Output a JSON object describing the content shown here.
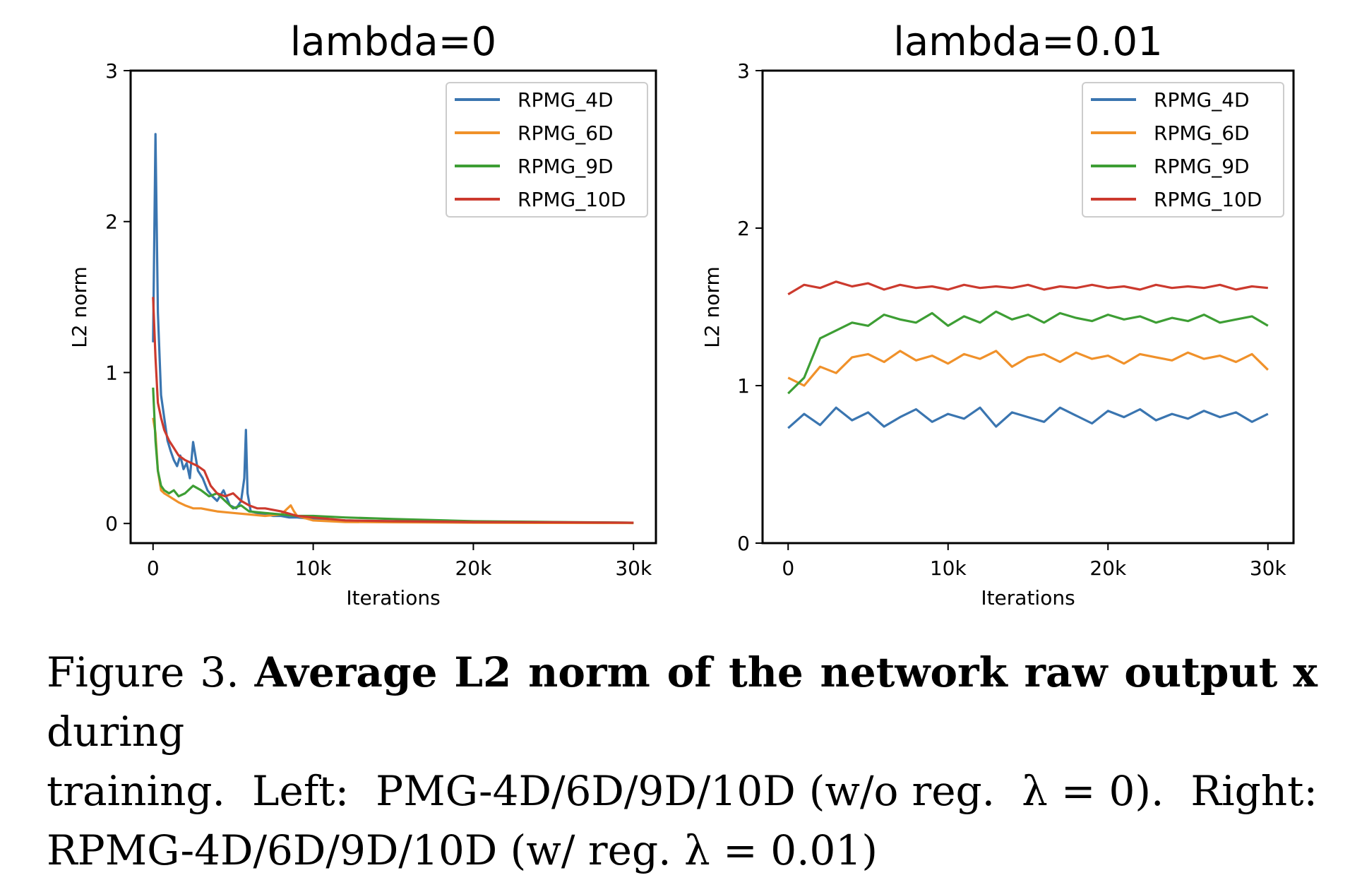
{
  "chart_data": [
    {
      "type": "line",
      "title": "lambda=0",
      "xlabel": "Iterations",
      "ylabel": "L2 norm",
      "xlim": [
        -1400,
        31400
      ],
      "ylim": [
        -0.13,
        3.0
      ],
      "xticks": [
        0,
        10000,
        20000,
        30000
      ],
      "xtick_labels": [
        "0",
        "10k",
        "20k",
        "30k"
      ],
      "yticks": [
        0,
        1,
        2,
        3
      ],
      "ytick_labels": [
        "0",
        "1",
        "2",
        "3"
      ],
      "legend_position": "top-right",
      "series": [
        {
          "name": "RPMG_4D",
          "color": "#3a75b0",
          "x": [
            0,
            150,
            300,
            500,
            700,
            900,
            1100,
            1300,
            1500,
            1700,
            1900,
            2100,
            2300,
            2500,
            2800,
            3100,
            3400,
            3700,
            4000,
            4400,
            4800,
            5200,
            5500,
            5700,
            5800,
            5900,
            6100,
            6500,
            7000,
            7500,
            8000,
            8500,
            9000,
            10000,
            12000,
            15000,
            20000,
            25000,
            30000
          ],
          "values": [
            1.2,
            2.58,
            1.4,
            0.85,
            0.7,
            0.55,
            0.48,
            0.42,
            0.38,
            0.45,
            0.36,
            0.4,
            0.3,
            0.54,
            0.35,
            0.3,
            0.22,
            0.18,
            0.15,
            0.22,
            0.12,
            0.1,
            0.15,
            0.3,
            0.62,
            0.2,
            0.08,
            0.07,
            0.06,
            0.05,
            0.05,
            0.04,
            0.04,
            0.03,
            0.02,
            0.015,
            0.01,
            0.008,
            0.005
          ]
        },
        {
          "name": "RPMG_6D",
          "color": "#f0912a",
          "x": [
            0,
            150,
            300,
            500,
            700,
            1000,
            1300,
            1600,
            2000,
            2500,
            3000,
            3500,
            4000,
            5000,
            6000,
            7000,
            8000,
            8600,
            8800,
            9000,
            10000,
            12000,
            15000,
            20000,
            25000,
            30000
          ],
          "values": [
            0.7,
            0.6,
            0.35,
            0.22,
            0.2,
            0.18,
            0.16,
            0.14,
            0.12,
            0.1,
            0.1,
            0.09,
            0.08,
            0.07,
            0.06,
            0.05,
            0.06,
            0.12,
            0.08,
            0.05,
            0.02,
            0.01,
            0.008,
            0.005,
            0.004,
            0.003
          ]
        },
        {
          "name": "RPMG_9D",
          "color": "#3d9e34",
          "x": [
            0,
            150,
            300,
            500,
            700,
            1000,
            1300,
            1600,
            2000,
            2500,
            3000,
            3500,
            4000,
            4500,
            5000,
            5500,
            6000,
            7000,
            8000,
            9000,
            10000,
            12000,
            15000,
            20000,
            25000,
            30000
          ],
          "values": [
            0.9,
            0.55,
            0.35,
            0.25,
            0.22,
            0.2,
            0.22,
            0.18,
            0.2,
            0.25,
            0.22,
            0.18,
            0.2,
            0.15,
            0.1,
            0.12,
            0.08,
            0.07,
            0.06,
            0.05,
            0.05,
            0.04,
            0.03,
            0.015,
            0.01,
            0.005
          ]
        },
        {
          "name": "RPMG_10D",
          "color": "#cc3a2e",
          "x": [
            0,
            150,
            300,
            500,
            700,
            1000,
            1300,
            1600,
            2000,
            2400,
            2800,
            3200,
            3600,
            4000,
            4500,
            5000,
            5500,
            6000,
            6500,
            7000,
            8000,
            9000,
            10000,
            12000,
            15000,
            20000,
            25000,
            30000
          ],
          "values": [
            1.5,
            1.1,
            0.8,
            0.7,
            0.62,
            0.55,
            0.5,
            0.45,
            0.42,
            0.4,
            0.38,
            0.35,
            0.25,
            0.2,
            0.18,
            0.2,
            0.15,
            0.12,
            0.1,
            0.1,
            0.08,
            0.05,
            0.04,
            0.02,
            0.015,
            0.01,
            0.008,
            0.005
          ]
        }
      ]
    },
    {
      "type": "line",
      "title": "lambda=0.01",
      "xlabel": "Iterations",
      "ylabel": "L2 norm",
      "xlim": [
        -1600,
        31600
      ],
      "ylim": [
        0,
        3.0
      ],
      "xticks": [
        0,
        10000,
        20000,
        30000
      ],
      "xtick_labels": [
        "0",
        "10k",
        "20k",
        "30k"
      ],
      "yticks": [
        0,
        1,
        2,
        3
      ],
      "ytick_labels": [
        "0",
        "1",
        "2",
        "3"
      ],
      "legend_position": "top-right",
      "series": [
        {
          "name": "RPMG_4D",
          "color": "#3a75b0",
          "x": [
            0,
            1000,
            2000,
            3000,
            4000,
            5000,
            6000,
            7000,
            8000,
            9000,
            10000,
            11000,
            12000,
            13000,
            14000,
            15000,
            16000,
            17000,
            18000,
            19000,
            20000,
            21000,
            22000,
            23000,
            24000,
            25000,
            26000,
            27000,
            28000,
            29000,
            30000
          ],
          "values": [
            0.73,
            0.82,
            0.75,
            0.86,
            0.78,
            0.83,
            0.74,
            0.8,
            0.85,
            0.77,
            0.82,
            0.79,
            0.86,
            0.74,
            0.83,
            0.8,
            0.77,
            0.86,
            0.81,
            0.76,
            0.84,
            0.8,
            0.85,
            0.78,
            0.82,
            0.79,
            0.84,
            0.8,
            0.83,
            0.77,
            0.82
          ]
        },
        {
          "name": "RPMG_6D",
          "color": "#f0912a",
          "x": [
            0,
            1000,
            2000,
            3000,
            4000,
            5000,
            6000,
            7000,
            8000,
            9000,
            10000,
            11000,
            12000,
            13000,
            14000,
            15000,
            16000,
            17000,
            18000,
            19000,
            20000,
            21000,
            22000,
            23000,
            24000,
            25000,
            26000,
            27000,
            28000,
            29000,
            30000
          ],
          "values": [
            1.05,
            1.0,
            1.12,
            1.08,
            1.18,
            1.2,
            1.15,
            1.22,
            1.16,
            1.19,
            1.14,
            1.2,
            1.17,
            1.22,
            1.12,
            1.18,
            1.2,
            1.15,
            1.21,
            1.17,
            1.19,
            1.14,
            1.2,
            1.18,
            1.16,
            1.21,
            1.17,
            1.19,
            1.15,
            1.2,
            1.1
          ]
        },
        {
          "name": "RPMG_9D",
          "color": "#3d9e34",
          "x": [
            0,
            1000,
            2000,
            3000,
            4000,
            5000,
            6000,
            7000,
            8000,
            9000,
            10000,
            11000,
            12000,
            13000,
            14000,
            15000,
            16000,
            17000,
            18000,
            19000,
            20000,
            21000,
            22000,
            23000,
            24000,
            25000,
            26000,
            27000,
            28000,
            29000,
            30000
          ],
          "values": [
            0.95,
            1.05,
            1.3,
            1.35,
            1.4,
            1.38,
            1.45,
            1.42,
            1.4,
            1.46,
            1.38,
            1.44,
            1.4,
            1.47,
            1.42,
            1.45,
            1.4,
            1.46,
            1.43,
            1.41,
            1.45,
            1.42,
            1.44,
            1.4,
            1.43,
            1.41,
            1.45,
            1.4,
            1.42,
            1.44,
            1.38
          ]
        },
        {
          "name": "RPMG_10D",
          "color": "#cc3a2e",
          "x": [
            0,
            1000,
            2000,
            3000,
            4000,
            5000,
            6000,
            7000,
            8000,
            9000,
            10000,
            11000,
            12000,
            13000,
            14000,
            15000,
            16000,
            17000,
            18000,
            19000,
            20000,
            21000,
            22000,
            23000,
            24000,
            25000,
            26000,
            27000,
            28000,
            29000,
            30000
          ],
          "values": [
            1.58,
            1.64,
            1.62,
            1.66,
            1.63,
            1.65,
            1.61,
            1.64,
            1.62,
            1.63,
            1.61,
            1.64,
            1.62,
            1.63,
            1.62,
            1.64,
            1.61,
            1.63,
            1.62,
            1.64,
            1.62,
            1.63,
            1.61,
            1.64,
            1.62,
            1.63,
            1.62,
            1.64,
            1.61,
            1.63,
            1.62
          ]
        }
      ]
    }
  ],
  "caption": {
    "label": "Figure 3.",
    "bold_text": "Average L2 norm of the network raw output",
    "symbol_x": "x",
    "line1_end": "during",
    "line2": "training.  Left:  PMG-4D/6D/9D/10D (w/o reg.  λ = 0).  Right:",
    "line3": "RPMG-4D/6D/9D/10D (w/ reg. λ = 0.01)"
  }
}
